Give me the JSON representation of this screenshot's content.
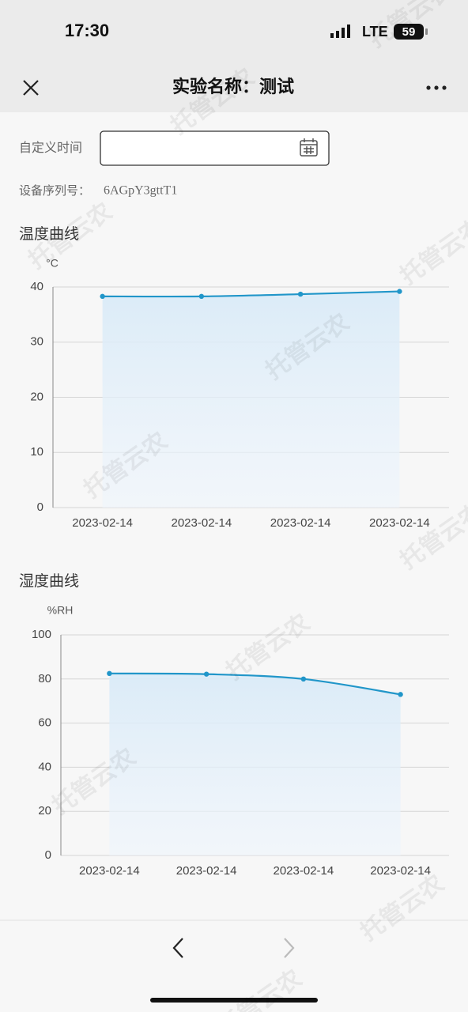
{
  "status_bar": {
    "time": "17:30",
    "network": "LTE",
    "battery": "59"
  },
  "header": {
    "title": "实验名称：测试"
  },
  "filter": {
    "label": "自定义时间"
  },
  "device": {
    "label": "设备序列号：",
    "serial": "6AGpY3gttT1"
  },
  "watermark": "托管云农",
  "chart_data": [
    {
      "type": "line",
      "title": "温度曲线",
      "y_label": "°C",
      "categories": [
        "2023-02-14",
        "2023-02-14",
        "2023-02-14",
        "2023-02-14"
      ],
      "values": [
        38.3,
        38.3,
        38.7,
        39.2
      ],
      "color": "#2196c9",
      "ylim": [
        0,
        40
      ],
      "yticks": [
        0,
        10,
        20,
        30,
        40
      ],
      "grid": true,
      "area": true
    },
    {
      "type": "line",
      "title": "湿度曲线",
      "y_label": "%RH",
      "categories": [
        "2023-02-14",
        "2023-02-14",
        "2023-02-14",
        "2023-02-14"
      ],
      "values": [
        82.5,
        82.2,
        80,
        73
      ],
      "color": "#2196c9",
      "ylim": [
        0,
        100
      ],
      "yticks": [
        0,
        20,
        40,
        60,
        80,
        100
      ],
      "grid": true,
      "area": true
    }
  ]
}
